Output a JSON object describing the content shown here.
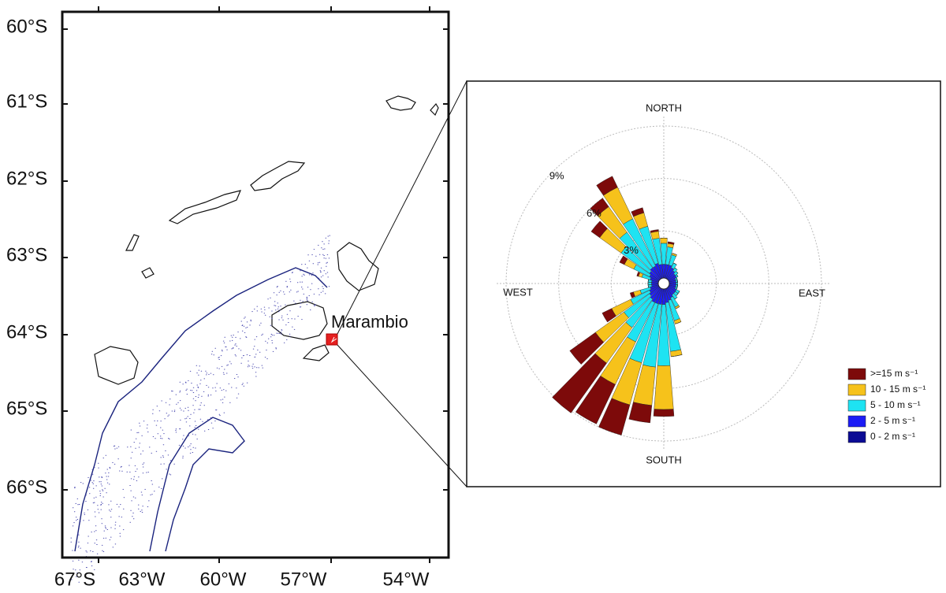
{
  "map": {
    "lat_labels": [
      "60°S",
      "61°S",
      "62°S",
      "63°S",
      "64°S",
      "65°S",
      "66°S"
    ],
    "lon_labels": [
      "67°S",
      "63°W",
      "60°W",
      "57°W",
      "54°W"
    ],
    "station": "Marambio"
  },
  "chart_data": {
    "type": "windrose",
    "direction_labels": [
      "NORTH",
      "EAST",
      "SOUTH",
      "WEST"
    ],
    "rlim": [
      0,
      9
    ],
    "rticks": [
      {
        "value": 3,
        "label": "3%"
      },
      {
        "value": 6,
        "label": "6%"
      },
      {
        "value": 9,
        "label": "9%"
      }
    ],
    "grid": true,
    "legend": "lower right",
    "series": [
      {
        "name": "0 - 2 m s⁻¹",
        "color": "#0b0b94",
        "values": [
          0.3,
          0.3,
          0.3,
          0.3,
          0.3,
          0.3,
          0.3,
          0.3,
          0.3,
          0.3,
          0.3,
          0.3,
          0.3,
          0.3,
          0.3,
          0.3,
          0.3,
          0.3,
          0.3,
          0.3,
          0.3,
          0.3,
          0.3,
          0.3,
          0.3,
          0.3,
          0.3,
          0.3,
          0.3,
          0.3,
          0.3,
          0.3,
          0.3,
          0.3,
          0.3,
          0.3
        ]
      },
      {
        "name": "2 - 5 m s⁻¹",
        "color": "#1c1cf5",
        "values": [
          0.8,
          0.8,
          0.8,
          0.7,
          0.6,
          0.5,
          0.5,
          0.4,
          0.4,
          0.4,
          0.4,
          0.4,
          0.5,
          0.5,
          0.5,
          0.6,
          0.7,
          0.8,
          0.9,
          0.9,
          0.9,
          0.9,
          0.8,
          0.7,
          0.6,
          0.5,
          0.4,
          0.4,
          0.4,
          0.5,
          0.6,
          0.7,
          0.8,
          0.8,
          0.9,
          0.8
        ]
      },
      {
        "name": "5 - 10 m s⁻¹",
        "color": "#1ee3f2",
        "values": [
          1.2,
          1.0,
          0.6,
          0.3,
          0.2,
          0.2,
          0.1,
          0.1,
          0.1,
          0.1,
          0.1,
          0.1,
          0.2,
          0.2,
          0.3,
          0.6,
          1.2,
          2.8,
          3.5,
          3.6,
          3.5,
          2.5,
          2.0,
          1.8,
          1.2,
          0.6,
          0.2,
          0.2,
          0.2,
          0.5,
          1.0,
          2.0,
          2.5,
          3.0,
          2.2,
          1.5
        ]
      },
      {
        "name": "10 - 15 m s⁻¹",
        "color": "#f6c21b",
        "values": [
          0.3,
          0.2,
          0.1,
          0,
          0,
          0,
          0,
          0,
          0,
          0,
          0,
          0,
          0,
          0,
          0,
          0.1,
          0.2,
          0.3,
          2.5,
          2.2,
          2.5,
          2.7,
          2.5,
          2.0,
          1.2,
          0.4,
          0,
          0,
          0,
          0.2,
          0.6,
          1.5,
          1.8,
          2.0,
          0.8,
          0.4
        ]
      },
      {
        "name": ">=15 m s⁻¹",
        "color": "#7d0a0a",
        "values": [
          0,
          0.1,
          0,
          0,
          0,
          0,
          0,
          0,
          0,
          0,
          0,
          0,
          0,
          0,
          0,
          0,
          0,
          0,
          0.4,
          1.0,
          1.8,
          2.5,
          3.5,
          1.8,
          0.6,
          0.2,
          0,
          0,
          0,
          0.1,
          0.3,
          0.6,
          0.6,
          0.7,
          0.3,
          0.1
        ]
      }
    ]
  }
}
